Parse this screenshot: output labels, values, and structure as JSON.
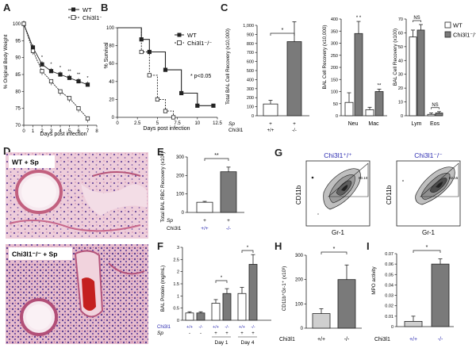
{
  "colors": {
    "axis": "#222222",
    "grey_bar": "#7a7a7a",
    "white_bar": "#ffffff",
    "blue": "#2a2ab0",
    "hist_pink": "#cf8aa2"
  },
  "chart_data": [
    {
      "panel": "A",
      "type": "line",
      "xlabel": "Days post infection",
      "ylabel": "% Original Body Weight",
      "xlim": [
        0,
        8
      ],
      "ylim": [
        70,
        100
      ],
      "xticks": [
        "0",
        "1",
        "2",
        "3",
        "4",
        "5",
        "6",
        "7",
        "8"
      ],
      "yticks": [
        "70",
        "75",
        "80",
        "85",
        "90",
        "95",
        "100"
      ],
      "series": [
        {
          "name": "WT",
          "marker": "filled-square",
          "x": [
            0,
            1,
            2,
            3,
            4,
            5,
            6,
            7
          ],
          "y": [
            100,
            93,
            88,
            86,
            85,
            84,
            83,
            82
          ]
        },
        {
          "name": "Chi3l1⁻/⁻",
          "marker": "open-square",
          "x": [
            0,
            1,
            2,
            3,
            4,
            5,
            6,
            7
          ],
          "y": [
            100,
            92,
            86,
            83,
            80,
            78,
            75,
            72
          ]
        }
      ],
      "annotations": [
        "*",
        "*",
        "*",
        "**",
        "**",
        "*"
      ]
    },
    {
      "panel": "B",
      "type": "line",
      "step": true,
      "xlabel": "Days post infection",
      "ylabel": "% Survival",
      "xlim": [
        0,
        12.5
      ],
      "ylim": [
        0,
        100
      ],
      "xticks": [
        "0",
        "2.5",
        "5",
        "7.5",
        "10",
        "12.5"
      ],
      "yticks": [
        "0",
        "20",
        "40",
        "60",
        "80",
        "100"
      ],
      "series": [
        {
          "name": "WT",
          "x": [
            0,
            3,
            4,
            6,
            8,
            10,
            12
          ],
          "y": [
            100,
            87,
            73,
            53,
            27,
            13,
            13
          ]
        },
        {
          "name": "Chi3l1⁻/⁻",
          "x": [
            0,
            3,
            4,
            5,
            6,
            7
          ],
          "y": [
            100,
            73,
            47,
            20,
            7,
            0
          ]
        }
      ],
      "annotations": [
        "* p<0.05"
      ]
    },
    {
      "panel": "C",
      "type": "bar",
      "ylabel": "Total BAL Cell Recovery (x10,000)",
      "ylim": [
        0,
        1000
      ],
      "yticks": [
        "0",
        "100",
        "200",
        "300",
        "400",
        "500",
        "600",
        "700",
        "800",
        "900",
        "1,000"
      ],
      "row_labels": [
        "Sp",
        "Chi3l1"
      ],
      "sp": [
        "+",
        "+"
      ],
      "genotype": [
        "+/+",
        "-/-"
      ],
      "series": [
        {
          "values": [
            130,
            820
          ],
          "errors": [
            40,
            220
          ]
        }
      ],
      "annotations": [
        "*"
      ]
    },
    {
      "panel": "C2",
      "type": "bar",
      "ylabel": "BAL Cell Recovery (x10,000)",
      "ylim": [
        0,
        400
      ],
      "yticks": [
        "0",
        "50",
        "100",
        "150",
        "200",
        "250",
        "300",
        "350",
        "400"
      ],
      "categories": [
        "Neu",
        "Mac"
      ],
      "series": [
        {
          "name": "WT",
          "values": [
            55,
            25
          ],
          "errors": [
            40,
            10
          ]
        },
        {
          "name": "Chi3l1⁻/⁻",
          "values": [
            340,
            100
          ],
          "errors": [
            50,
            10
          ]
        }
      ],
      "annotations": [
        "* *",
        "**"
      ]
    },
    {
      "panel": "C3",
      "type": "bar",
      "ylabel": "BAL Cell Recovery (x100)",
      "ylim": [
        0,
        70
      ],
      "yticks": [
        "0",
        "10",
        "20",
        "30",
        "40",
        "50",
        "60",
        "70"
      ],
      "categories": [
        "Lym",
        "Eos"
      ],
      "series": [
        {
          "name": "WT",
          "values": [
            57,
            1
          ],
          "errors": [
            5,
            1
          ]
        },
        {
          "name": "Chi3l1⁻/⁻",
          "values": [
            62,
            2
          ],
          "errors": [
            4,
            1
          ]
        }
      ],
      "annotations": [
        "NS",
        "NS"
      ]
    },
    {
      "panel": "E",
      "type": "bar",
      "ylabel": "Total BAL RBC Recovery (x10⁴)",
      "ylim": [
        0,
        300
      ],
      "yticks": [
        "0",
        "100",
        "200",
        "300"
      ],
      "row_labels": [
        "Sp",
        "Chi3l1"
      ],
      "sp": [
        "+",
        "+"
      ],
      "genotype": [
        "+/+",
        "-/-"
      ],
      "series": [
        {
          "values": [
            55,
            220
          ],
          "errors": [
            5,
            25
          ]
        }
      ],
      "annotations": [
        "**"
      ]
    },
    {
      "panel": "F",
      "type": "bar",
      "ylabel": "BAL Protein (mg/mL)",
      "ylim": [
        0,
        3
      ],
      "yticks": [
        "0",
        "0.5",
        "1",
        "1.5",
        "2",
        "2.5",
        "3"
      ],
      "row_labels": [
        "Chi3l1",
        "Sp"
      ],
      "genotype": [
        "+/+",
        "-/-",
        "+/+",
        "-/-",
        "+/+",
        "-/-"
      ],
      "sp": [
        "-",
        "-",
        "+",
        "+",
        "+",
        "+"
      ],
      "groups": [
        "Day 1",
        "Day 4"
      ],
      "series": [
        {
          "values": [
            0.3,
            0.3,
            0.7,
            1.1,
            1.1,
            2.3
          ],
          "errors": [
            0.05,
            0.05,
            0.15,
            0.2,
            0.25,
            0.4
          ]
        }
      ],
      "annotations": [
        "*",
        "*"
      ]
    },
    {
      "panel": "H",
      "type": "bar",
      "ylabel": "CD11b⁺Gr-1⁺ (x10³)",
      "ylim": [
        0,
        300
      ],
      "yticks": [
        "0",
        "100",
        "200",
        "300"
      ],
      "row_labels": [
        "Chi3l1"
      ],
      "genotype": [
        "+/+",
        "-/-"
      ],
      "series": [
        {
          "values": [
            60,
            200
          ],
          "errors": [
            20,
            60
          ]
        }
      ],
      "annotations": [
        "*"
      ]
    },
    {
      "panel": "I",
      "type": "bar",
      "ylabel": "MPO activity",
      "ylim": [
        0,
        0.07
      ],
      "yticks": [
        "0",
        "0.01",
        "0.02",
        "0.03",
        "0.04",
        "0.05",
        "0.06",
        "0.07"
      ],
      "row_labels": [
        "Chi3l1"
      ],
      "genotype": [
        "+/+",
        "-/-"
      ],
      "series": [
        {
          "values": [
            0.005,
            0.06
          ],
          "errors": [
            0.005,
            0.005
          ]
        }
      ],
      "annotations": [
        "*"
      ]
    }
  ],
  "panels": {
    "A": {
      "letter": "A"
    },
    "B": {
      "letter": "B"
    },
    "C": {
      "letter": "C",
      "legend_wt": "WT",
      "legend_ko": "Chi3l1⁻/⁻"
    },
    "D": {
      "letter": "D",
      "top_label": "WT + Sp",
      "bottom_label": "Chi3l1⁻/⁻ + Sp"
    },
    "E": {
      "letter": "E"
    },
    "F": {
      "letter": "F"
    },
    "G": {
      "letter": "G",
      "left_title": "Chi3l1⁺/⁺",
      "right_title": "Chi3l1⁻/⁻",
      "ylabel": "CD11b",
      "xlabel": "Gr-1",
      "gate_left": "80.10",
      "gate_right": "82.15"
    },
    "H": {
      "letter": "H"
    },
    "I": {
      "letter": "I"
    }
  }
}
